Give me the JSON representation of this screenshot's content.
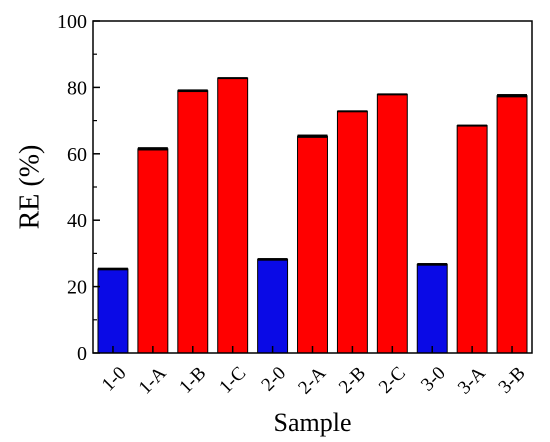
{
  "chart_data": {
    "type": "bar",
    "xlabel": "Sample",
    "ylabel": "RE (%)",
    "ylim": [
      0,
      100
    ],
    "yticks": [
      0,
      20,
      40,
      60,
      80,
      100
    ],
    "grid": false,
    "categories": [
      "1-0",
      "1-A",
      "1-B",
      "1-C",
      "2-0",
      "2-A",
      "2-B",
      "2-C",
      "3-0",
      "3-A",
      "3-B"
    ],
    "values": [
      25.3,
      61.5,
      79.0,
      82.8,
      28.2,
      65.3,
      72.8,
      77.9,
      26.7,
      68.5,
      77.5
    ],
    "errors": [
      0.4,
      0.5,
      0.4,
      0.3,
      0.4,
      0.5,
      0.3,
      0.3,
      0.4,
      0.3,
      0.5
    ],
    "bar_colors": [
      "#0a0ae6",
      "#ff0000",
      "#ff0000",
      "#ff0000",
      "#0a0ae6",
      "#ff0000",
      "#ff0000",
      "#ff0000",
      "#0a0ae6",
      "#ff0000",
      "#ff0000"
    ]
  }
}
